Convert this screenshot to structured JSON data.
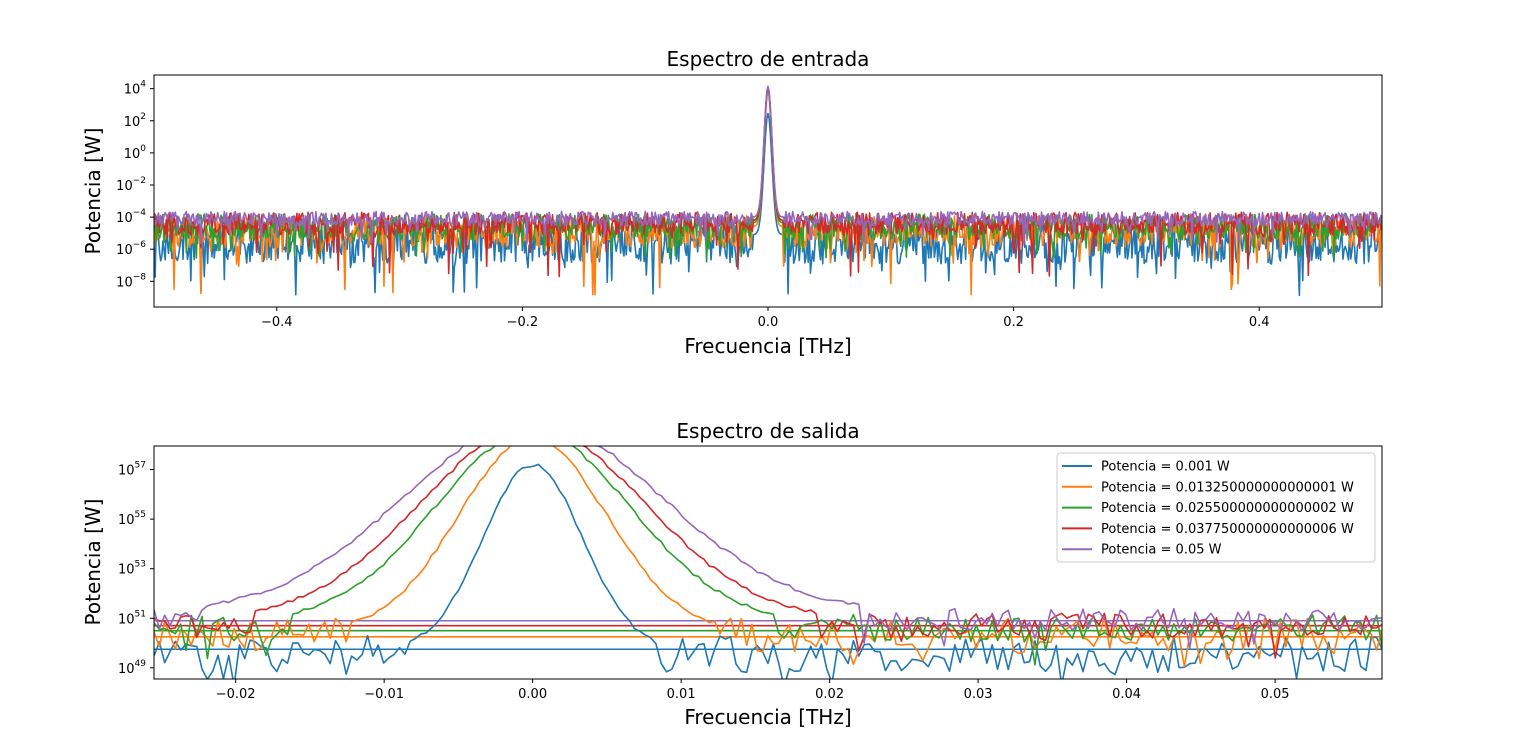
{
  "chart_data": [
    {
      "type": "line",
      "title": "Espectro de entrada",
      "xlabel": "Frecuencia [THz]",
      "ylabel": "Potencia [W]",
      "yscale": "log",
      "xlim": [
        -0.5,
        0.5
      ],
      "ylim_log10": [
        -9.6,
        4.85
      ],
      "xticks": [
        -0.4,
        -0.2,
        0.0,
        0.2,
        0.4
      ],
      "xtick_labels": [
        "−0.4",
        "−0.2",
        "0.0",
        "0.2",
        "0.4"
      ],
      "yticks_exp": [
        4,
        2,
        0,
        -2,
        -4,
        -6,
        -8
      ],
      "ytick_labels": [
        "4",
        "2",
        "0",
        "−2",
        "−4",
        "−6",
        "−8"
      ],
      "grid": false,
      "series": [
        {
          "color": "#1f77b4",
          "peak_log10": 2.45,
          "floor_log10": -5.1,
          "noise_center_log10": -5.6,
          "noise_spread": 1.3,
          "noise_min_log10": -9.0
        },
        {
          "color": "#ff7f0e",
          "peak_log10": 3.85,
          "floor_log10": -4.6,
          "noise_center_log10": -4.9,
          "noise_spread": 1.0,
          "noise_min_log10": -8.9
        },
        {
          "color": "#2ca02c",
          "peak_log10": 4.0,
          "floor_log10": -4.35,
          "noise_center_log10": -4.6,
          "noise_spread": 0.8,
          "noise_min_log10": -6.6
        },
        {
          "color": "#d62728",
          "peak_log10": 4.1,
          "floor_log10": -4.2,
          "noise_center_log10": -4.4,
          "noise_spread": 0.7,
          "noise_min_log10": -7.8
        },
        {
          "color": "#9467bd",
          "peak_log10": 4.15,
          "floor_log10": -4.0,
          "noise_center_log10": -4.1,
          "noise_spread": 0.45,
          "noise_min_log10": -5.6
        }
      ]
    },
    {
      "type": "line",
      "title": "Espectro de salida",
      "xlabel": "Frecuencia [THz]",
      "ylabel": "Potencia [W]",
      "yscale": "log",
      "xlim": [
        -0.0255,
        0.0572
      ],
      "ylim_log10": [
        48.55,
        57.95
      ],
      "xticks": [
        -0.02,
        -0.01,
        0.0,
        0.01,
        0.02,
        0.03,
        0.04,
        0.05
      ],
      "xtick_labels": [
        "−0.02",
        "−0.01",
        "0.00",
        "0.01",
        "0.02",
        "0.03",
        "0.04",
        "0.05"
      ],
      "yticks_exp": [
        57,
        55,
        53,
        51,
        49
      ],
      "ytick_labels": [
        "57",
        "55",
        "53",
        "51",
        "49"
      ],
      "grid": false,
      "legend": {
        "location": "upper right",
        "entries": [
          "Potencia = 0.001 W",
          "Potencia = 0.013250000000000001 W",
          "Potencia = 0.025500000000000002 W",
          "Potencia = 0.037750000000000006 W",
          "Potencia = 0.05 W"
        ]
      },
      "series": [
        {
          "name": "Potencia = 0.001 W",
          "color": "#1f77b4",
          "peak_log10": 57.2,
          "half_width_thz": 0.0085,
          "floor_log10": 49.7,
          "noise_center_log10": 49.55,
          "noise_spread": 0.75,
          "baseline_log10": 49.75
        },
        {
          "name": "Potencia = 0.013250000000000001 W",
          "color": "#ff7f0e",
          "peak_log10": 58.3,
          "half_width_thz": 0.0125,
          "floor_log10": 50.45,
          "noise_center_log10": 50.35,
          "noise_spread": 0.7,
          "baseline_log10": 50.25
        },
        {
          "name": "Potencia = 0.025500000000000002 W",
          "color": "#2ca02c",
          "peak_log10": 58.55,
          "half_width_thz": 0.0165,
          "floor_log10": 50.85,
          "noise_center_log10": 50.6,
          "noise_spread": 0.55,
          "baseline_log10": 50.5
        },
        {
          "name": "Potencia = 0.037750000000000006 W",
          "color": "#d62728",
          "peak_log10": 58.75,
          "half_width_thz": 0.019,
          "floor_log10": 50.95,
          "noise_center_log10": 50.7,
          "noise_spread": 0.5,
          "baseline_log10": 50.7
        },
        {
          "name": "Potencia = 0.05 W",
          "color": "#9467bd",
          "peak_log10": 58.95,
          "half_width_thz": 0.022,
          "floor_log10": 51.2,
          "noise_center_log10": 50.95,
          "noise_spread": 0.45,
          "baseline_log10": 50.9
        }
      ]
    }
  ]
}
